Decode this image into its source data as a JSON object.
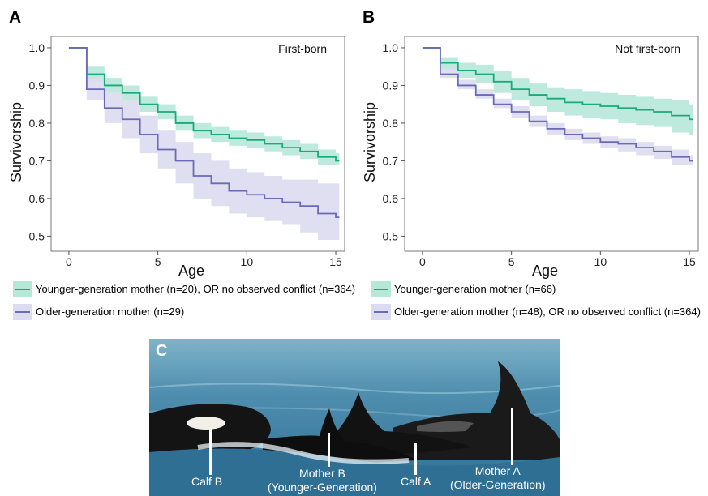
{
  "panels": [
    {
      "letter": "A",
      "annotation": "First-born",
      "legend": [
        {
          "label": "Younger-generation mother (n=20), OR no observed conflict (n=364)"
        },
        {
          "label": "Older-generation mother (n=29)"
        }
      ]
    },
    {
      "letter": "B",
      "annotation": "Not first-born",
      "legend": [
        {
          "label": "Younger-generation mother (n=66)"
        },
        {
          "label": "Older-generation mother (n=48), OR no observed conflict (n=364)"
        }
      ]
    }
  ],
  "colors": {
    "green": "#1aa97d",
    "green_band": "#b6e8d8",
    "purple": "#6a6ab8",
    "purple_band": "#dcdcf0"
  },
  "chart_data": [
    {
      "type": "line",
      "step": true,
      "annotation": "First-born",
      "xlabel": "Age",
      "ylabel": "Survivorship",
      "xlim": [
        -1,
        15.5
      ],
      "ylim": [
        0.46,
        1.03
      ],
      "xticks": [
        0,
        5,
        10,
        15
      ],
      "yticks": [
        0.5,
        0.6,
        0.7,
        0.8,
        0.9,
        1.0
      ],
      "grid": false,
      "legend_position": "bottom",
      "series": [
        {
          "name": "Younger-generation mother (n=20), OR no observed conflict (n=364)",
          "color": "#1aa97d",
          "band_color": "#b6e8d8",
          "x": [
            0,
            1,
            2,
            3,
            4,
            5,
            6,
            7,
            8,
            9,
            10,
            11,
            12,
            13,
            14,
            15
          ],
          "y": [
            1.0,
            0.93,
            0.9,
            0.88,
            0.85,
            0.83,
            0.8,
            0.78,
            0.77,
            0.76,
            0.755,
            0.745,
            0.735,
            0.725,
            0.71,
            0.7
          ],
          "lower": [
            1.0,
            0.91,
            0.88,
            0.86,
            0.83,
            0.81,
            0.78,
            0.76,
            0.75,
            0.74,
            0.735,
            0.725,
            0.715,
            0.705,
            0.69,
            0.69
          ],
          "upper": [
            1.0,
            0.95,
            0.92,
            0.9,
            0.87,
            0.85,
            0.82,
            0.8,
            0.79,
            0.78,
            0.775,
            0.765,
            0.755,
            0.745,
            0.73,
            0.72
          ]
        },
        {
          "name": "Older-generation mother (n=29)",
          "color": "#6a6ab8",
          "band_color": "#dcdcf0",
          "x": [
            0,
            1,
            2,
            3,
            4,
            5,
            6,
            7,
            8,
            9,
            10,
            11,
            12,
            13,
            14,
            15
          ],
          "y": [
            1.0,
            0.89,
            0.84,
            0.81,
            0.77,
            0.73,
            0.7,
            0.66,
            0.64,
            0.62,
            0.61,
            0.6,
            0.59,
            0.58,
            0.56,
            0.55
          ],
          "lower": [
            1.0,
            0.86,
            0.8,
            0.76,
            0.72,
            0.68,
            0.64,
            0.6,
            0.58,
            0.56,
            0.55,
            0.54,
            0.53,
            0.51,
            0.49,
            0.49
          ],
          "upper": [
            1.0,
            0.92,
            0.88,
            0.86,
            0.82,
            0.78,
            0.75,
            0.72,
            0.7,
            0.68,
            0.67,
            0.66,
            0.65,
            0.65,
            0.64,
            0.64
          ]
        }
      ]
    },
    {
      "type": "line",
      "step": true,
      "annotation": "Not first-born",
      "xlabel": "Age",
      "ylabel": "Survivorship",
      "xlim": [
        -1,
        15.5
      ],
      "ylim": [
        0.46,
        1.03
      ],
      "xticks": [
        0,
        5,
        10,
        15
      ],
      "yticks": [
        0.5,
        0.6,
        0.7,
        0.8,
        0.9,
        1.0
      ],
      "grid": false,
      "legend_position": "bottom",
      "series": [
        {
          "name": "Younger-generation mother (n=66)",
          "color": "#1aa97d",
          "band_color": "#b6e8d8",
          "x": [
            0,
            1,
            2,
            3,
            4,
            5,
            6,
            7,
            8,
            9,
            10,
            11,
            12,
            13,
            14,
            15
          ],
          "y": [
            1.0,
            0.96,
            0.94,
            0.93,
            0.91,
            0.89,
            0.875,
            0.865,
            0.855,
            0.85,
            0.845,
            0.84,
            0.835,
            0.83,
            0.82,
            0.81
          ],
          "lower": [
            1.0,
            0.94,
            0.92,
            0.905,
            0.88,
            0.86,
            0.845,
            0.83,
            0.82,
            0.815,
            0.81,
            0.8,
            0.795,
            0.79,
            0.775,
            0.77
          ],
          "upper": [
            1.0,
            0.975,
            0.96,
            0.955,
            0.94,
            0.92,
            0.905,
            0.895,
            0.89,
            0.885,
            0.88,
            0.875,
            0.87,
            0.865,
            0.86,
            0.85
          ]
        },
        {
          "name": "Older-generation mother (n=48), OR no observed conflict (n=364)",
          "color": "#6a6ab8",
          "band_color": "#dcdcf0",
          "x": [
            0,
            1,
            2,
            3,
            4,
            5,
            6,
            7,
            8,
            9,
            10,
            11,
            12,
            13,
            14,
            15
          ],
          "y": [
            1.0,
            0.93,
            0.9,
            0.875,
            0.85,
            0.83,
            0.805,
            0.785,
            0.77,
            0.76,
            0.75,
            0.745,
            0.735,
            0.725,
            0.71,
            0.7
          ],
          "lower": [
            1.0,
            0.92,
            0.89,
            0.865,
            0.84,
            0.815,
            0.79,
            0.77,
            0.755,
            0.745,
            0.735,
            0.725,
            0.715,
            0.705,
            0.69,
            0.69
          ],
          "upper": [
            1.0,
            0.945,
            0.915,
            0.89,
            0.865,
            0.845,
            0.82,
            0.8,
            0.785,
            0.775,
            0.765,
            0.76,
            0.75,
            0.74,
            0.73,
            0.715
          ]
        }
      ]
    }
  ],
  "photo": {
    "letter": "C",
    "labels": [
      {
        "text": "Calf B"
      },
      {
        "text": "Mother B\n(Younger-Generation)"
      },
      {
        "text": "Calf A"
      },
      {
        "text": "Mother A\n(Older-Generation)"
      }
    ]
  }
}
